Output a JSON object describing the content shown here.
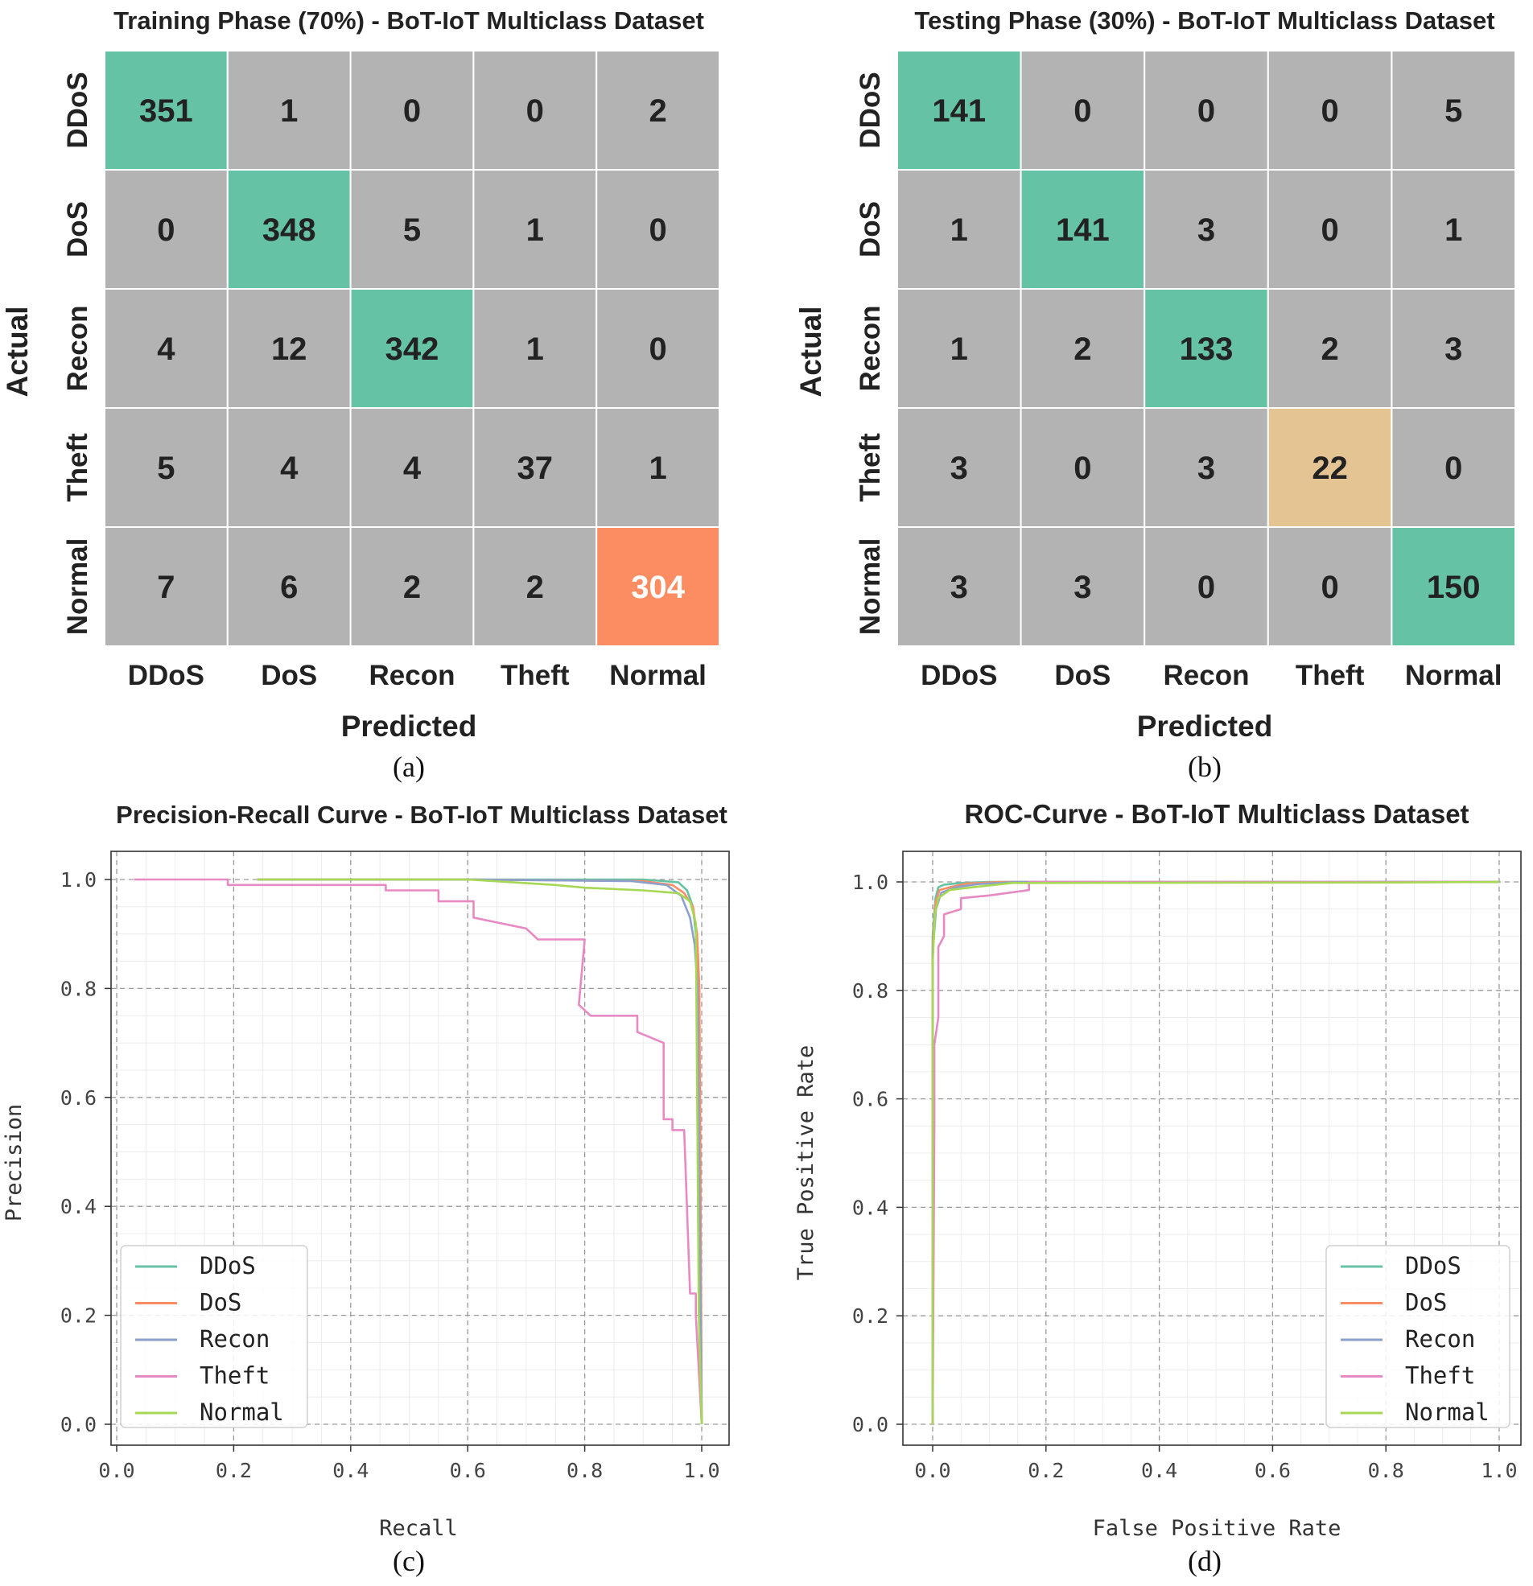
{
  "chart_data": [
    {
      "type": "heatmap",
      "panel_caption": "(a)",
      "title": "Training Phase (70%) - BoT-IoT Multiclass Dataset",
      "xlabel": "Predicted",
      "ylabel": "Actual",
      "classes": [
        "DDoS",
        "DoS",
        "Recon",
        "Theft",
        "Normal"
      ],
      "matrix": [
        [
          351,
          1,
          0,
          0,
          2
        ],
        [
          0,
          348,
          5,
          1,
          0
        ],
        [
          4,
          12,
          342,
          1,
          0
        ],
        [
          5,
          4,
          4,
          37,
          1
        ],
        [
          7,
          6,
          2,
          2,
          304
        ]
      ],
      "diagonal_colors": [
        "#66c2a5",
        "#66c2a5",
        "#66c2a5",
        "#b3b3b3",
        "#fc8d62"
      ],
      "offdiag_color": "#b3b3b3"
    },
    {
      "type": "heatmap",
      "panel_caption": "(b)",
      "title": "Testing Phase (30%) - BoT-IoT Multiclass Dataset",
      "xlabel": "Predicted",
      "ylabel": "Actual",
      "classes": [
        "DDoS",
        "DoS",
        "Recon",
        "Theft",
        "Normal"
      ],
      "matrix": [
        [
          141,
          0,
          0,
          0,
          5
        ],
        [
          1,
          141,
          3,
          0,
          1
        ],
        [
          1,
          2,
          133,
          2,
          3
        ],
        [
          3,
          0,
          3,
          22,
          0
        ],
        [
          3,
          3,
          0,
          0,
          150
        ]
      ],
      "diagonal_colors": [
        "#66c2a5",
        "#66c2a5",
        "#66c2a5",
        "#e5c494",
        "#66c2a5"
      ],
      "offdiag_color": "#b3b3b3"
    },
    {
      "type": "line",
      "panel_caption": "(c)",
      "title": "Precision-Recall Curve - BoT-IoT Multiclass Dataset",
      "xlabel": "Recall",
      "ylabel": "Precision",
      "xlim": [
        0.0,
        1.0
      ],
      "ylim": [
        0.0,
        1.0
      ],
      "xticks": [
        "0.0",
        "0.2",
        "0.4",
        "0.6",
        "0.8",
        "1.0"
      ],
      "yticks": [
        "0.0",
        "0.2",
        "0.4",
        "0.6",
        "0.8",
        "1.0"
      ],
      "grid": true,
      "legend_position": "bottom-left",
      "series": [
        {
          "name": "DDoS",
          "color": "#66c2a5",
          "x": [
            0.24,
            0.6,
            0.9,
            0.96,
            0.975,
            0.985,
            0.99,
            0.993,
            0.995,
            0.996,
            1.0
          ],
          "y": [
            1.0,
            1.0,
            1.0,
            0.995,
            0.98,
            0.95,
            0.9,
            0.82,
            0.74,
            0.45,
            0.0
          ]
        },
        {
          "name": "DoS",
          "color": "#fc8d62",
          "x": [
            0.24,
            0.6,
            0.9,
            0.95,
            0.97,
            0.985,
            0.992,
            0.996,
            0.998,
            1.0
          ],
          "y": [
            1.0,
            1.0,
            0.997,
            0.99,
            0.975,
            0.95,
            0.9,
            0.8,
            0.45,
            0.0
          ]
        },
        {
          "name": "Recon",
          "color": "#8da0cb",
          "x": [
            0.24,
            0.6,
            0.88,
            0.94,
            0.965,
            0.98,
            0.988,
            0.993,
            0.996,
            1.0
          ],
          "y": [
            1.0,
            1.0,
            0.997,
            0.99,
            0.97,
            0.93,
            0.88,
            0.8,
            0.45,
            0.0
          ]
        },
        {
          "name": "Theft",
          "color": "#e78ac3",
          "x": [
            0.03,
            0.19,
            0.19,
            0.46,
            0.46,
            0.55,
            0.55,
            0.61,
            0.61,
            0.7,
            0.72,
            0.8,
            0.79,
            0.81,
            0.89,
            0.89,
            0.935,
            0.935,
            0.95,
            0.95,
            0.97,
            0.98,
            0.99,
            0.99,
            1.0
          ],
          "y": [
            1.0,
            1.0,
            0.99,
            0.99,
            0.98,
            0.98,
            0.96,
            0.96,
            0.93,
            0.91,
            0.89,
            0.89,
            0.77,
            0.75,
            0.75,
            0.72,
            0.7,
            0.56,
            0.56,
            0.54,
            0.54,
            0.24,
            0.24,
            0.2,
            0.0
          ]
        },
        {
          "name": "Normal",
          "color": "#a6d854",
          "x": [
            0.24,
            0.6,
            0.75,
            0.8,
            0.9,
            0.96,
            0.98,
            0.99,
            0.995,
            1.0
          ],
          "y": [
            1.0,
            1.0,
            0.99,
            0.985,
            0.98,
            0.975,
            0.96,
            0.92,
            0.2,
            0.0
          ]
        }
      ]
    },
    {
      "type": "line",
      "panel_caption": "(d)",
      "title": "ROC-Curve - BoT-IoT Multiclass Dataset",
      "xlabel": "False Positive Rate",
      "ylabel": "True Positive Rate",
      "xlim": [
        0.0,
        1.0
      ],
      "ylim": [
        0.0,
        1.0
      ],
      "xticks": [
        "0.0",
        "0.2",
        "0.4",
        "0.6",
        "0.8",
        "1.0"
      ],
      "yticks": [
        "0.0",
        "0.2",
        "0.4",
        "0.6",
        "0.8",
        "1.0"
      ],
      "grid": true,
      "legend_position": "bottom-right",
      "series": [
        {
          "name": "DDoS",
          "color": "#66c2a5",
          "x": [
            0.0,
            0.0,
            0.005,
            0.01,
            0.02,
            0.05,
            0.1,
            1.0
          ],
          "y": [
            0.0,
            0.9,
            0.97,
            0.99,
            0.995,
            0.998,
            1.0,
            1.0
          ]
        },
        {
          "name": "DoS",
          "color": "#fc8d62",
          "x": [
            0.0,
            0.0,
            0.005,
            0.012,
            0.03,
            0.06,
            0.12,
            1.0
          ],
          "y": [
            0.0,
            0.88,
            0.96,
            0.985,
            0.99,
            0.997,
            1.0,
            1.0
          ]
        },
        {
          "name": "Recon",
          "color": "#8da0cb",
          "x": [
            0.0,
            0.0,
            0.006,
            0.015,
            0.04,
            0.08,
            0.15,
            1.0
          ],
          "y": [
            0.0,
            0.87,
            0.95,
            0.98,
            0.99,
            0.996,
            1.0,
            1.0
          ]
        },
        {
          "name": "Theft",
          "color": "#e78ac3",
          "x": [
            0.0,
            0.003,
            0.003,
            0.01,
            0.01,
            0.02,
            0.02,
            0.05,
            0.05,
            0.1,
            0.17,
            0.17,
            1.0
          ],
          "y": [
            0.0,
            0.55,
            0.7,
            0.75,
            0.88,
            0.9,
            0.94,
            0.95,
            0.97,
            0.975,
            0.985,
            1.0,
            1.0
          ]
        },
        {
          "name": "Normal",
          "color": "#a6d854",
          "x": [
            0.0,
            0.0,
            0.004,
            0.01,
            0.03,
            0.07,
            0.14,
            0.82,
            1.0
          ],
          "y": [
            0.0,
            0.85,
            0.94,
            0.97,
            0.985,
            0.99,
            0.998,
            0.999,
            1.0
          ]
        }
      ]
    }
  ]
}
